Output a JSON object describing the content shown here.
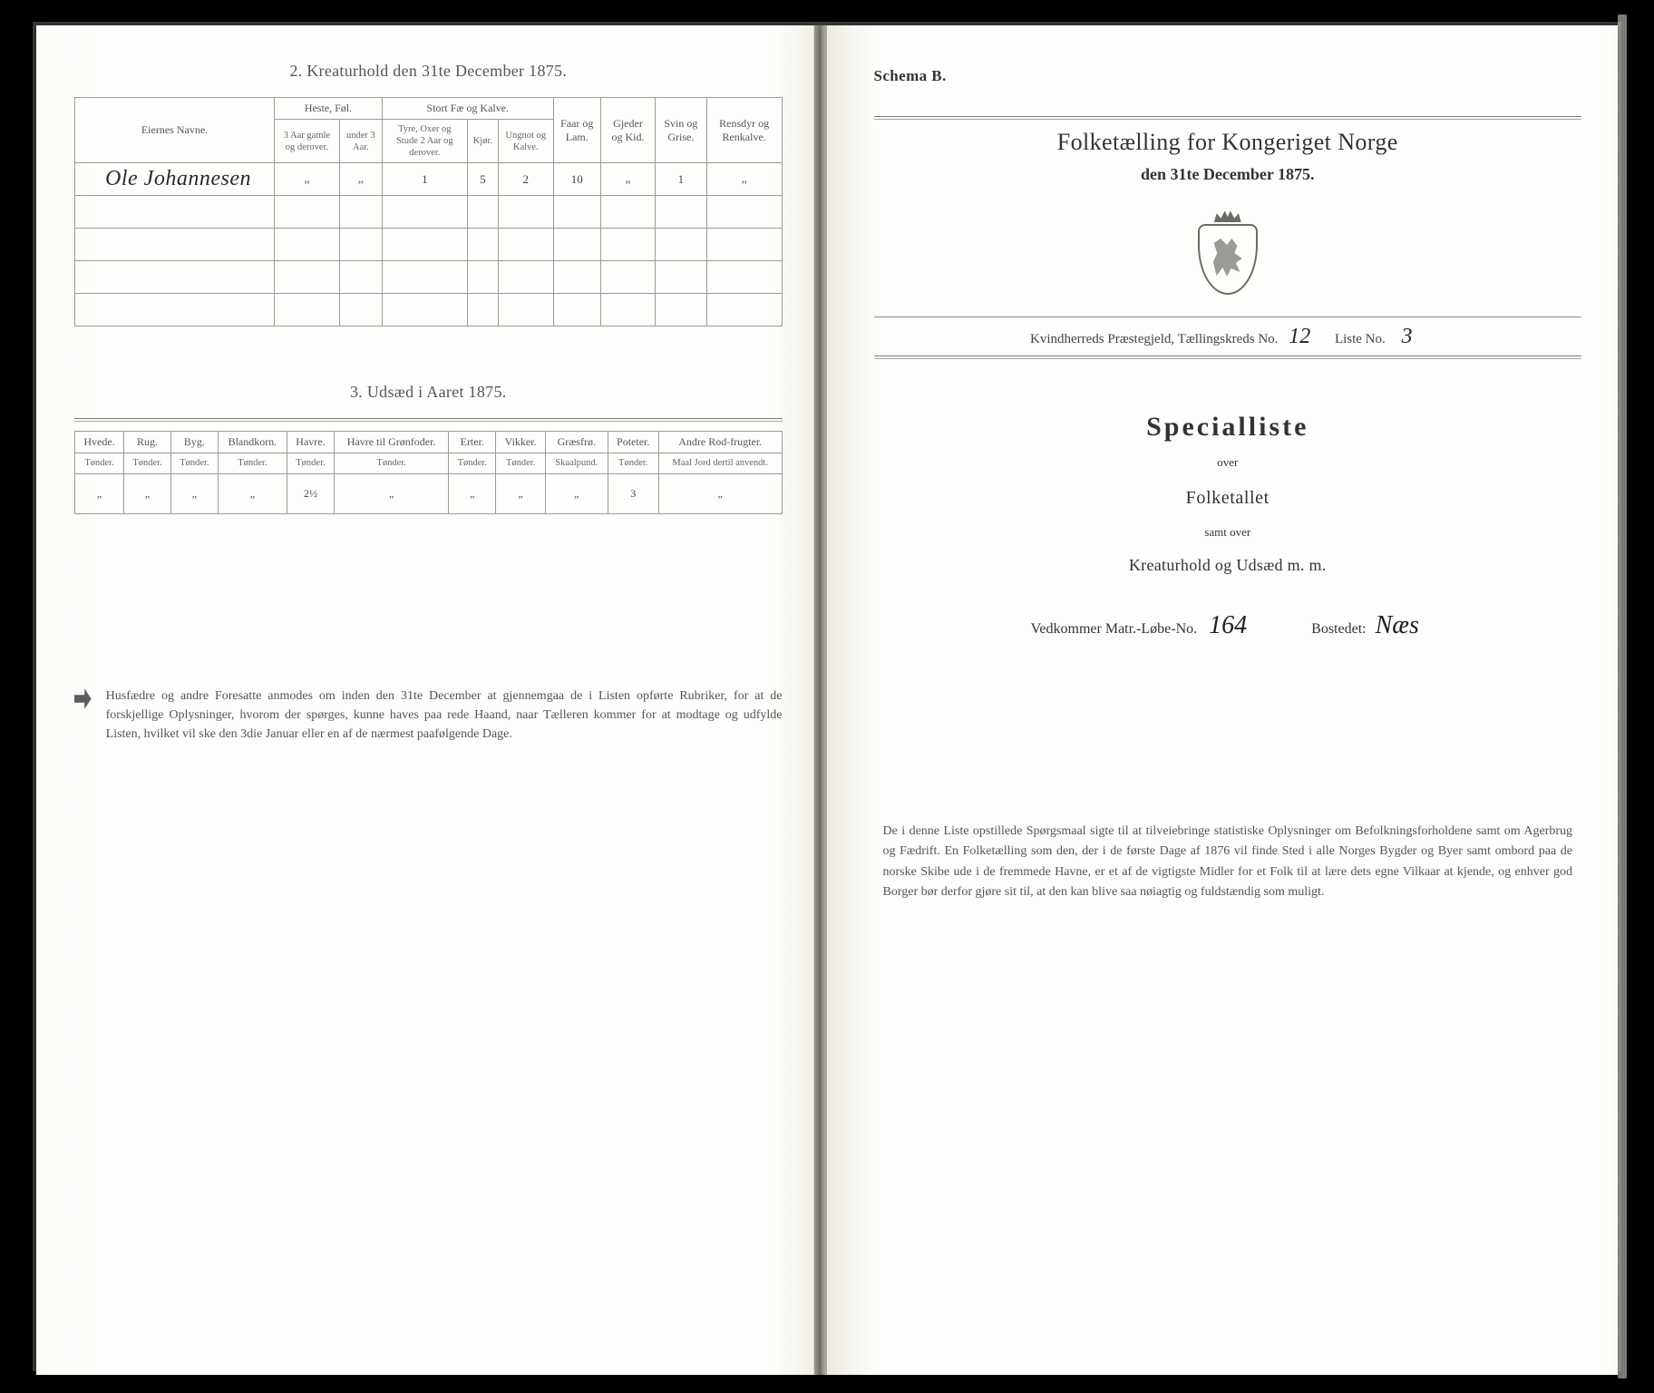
{
  "colors": {
    "page_bg": "#fdfdfb",
    "ink": "#333333",
    "rule": "#8c8c89",
    "border": "#9a9a96",
    "hand_ink": "#222222"
  },
  "left": {
    "section2_title": "2.  Kreaturhold den 31te December 1875.",
    "table1": {
      "owner_header": "Eiernes Navne.",
      "groups": {
        "heste": "Heste, Føl.",
        "stort": "Stort Fæ og Kalve."
      },
      "cols": {
        "h_old": "3 Aar gamle og derover.",
        "h_young": "under 3 Aar.",
        "oxe": "Tyre, Oxer og Stude 2 Aar og derover.",
        "kjor": "Kjør.",
        "ungnot": "Ungnot og Kalve.",
        "faar": "Faar og Lam.",
        "gjeder": "Gjeder og Kid.",
        "svin": "Svin og Grise.",
        "ren": "Rensdyr og Renkalve."
      },
      "row": {
        "owner": "Ole Johannesen",
        "h_old": "„",
        "h_young": "„",
        "oxe": "1",
        "kjor": "5",
        "ungnot": "2",
        "faar": "10",
        "gjeder": "„",
        "svin": "1",
        "ren": "„"
      }
    },
    "section3_title": "3.  Udsæd i Aaret 1875.",
    "table2": {
      "headers": {
        "hvede": "Hvede.",
        "rug": "Rug.",
        "byg": "Byg.",
        "bland": "Blandkorn.",
        "havre": "Havre.",
        "havre_gron": "Havre til Grønfoder.",
        "erter": "Erter.",
        "vikker": "Vikker.",
        "graafro": "Græsfrø.",
        "poteter": "Poteter.",
        "rod": "Andre Rod-frugter."
      },
      "sub": {
        "tonder": "Tønder.",
        "skaalpund": "Skaalpund.",
        "maal": "Maal Jord dertil anvendt."
      },
      "row": {
        "hvede": "„",
        "rug": "„",
        "byg": "„",
        "bland": "„",
        "havre": "2½",
        "havre_gron": "„",
        "erter": "„",
        "vikker": "„",
        "graafro": "„",
        "poteter": "3",
        "rod": "„"
      }
    },
    "note": "Husfædre og andre Foresatte anmodes om inden den 31te December at gjennemgaa de i Listen opførte Rubriker, for at de forskjellige Oplysninger, hvorom der spørges, kunne haves paa rede Haand, naar Tælleren kommer for at modtage og udfylde Listen, hvilket vil ske den 3die Januar eller en af de nærmest paafølgende Dage."
  },
  "right": {
    "schema": "Schema B.",
    "fk_title": "Folketælling for Kongeriget Norge",
    "fk_sub": "den 31te December 1875.",
    "kreds": {
      "prefix": "Kvindherreds Præstegjeld,  Tællingskreds No.",
      "kreds_no": "12",
      "liste_label": "Liste No.",
      "liste_no": "3"
    },
    "special": "Specialliste",
    "over": "over",
    "folketallet": "Folketallet",
    "samt_over": "samt over",
    "kreatur": "Kreaturhold og Udsæd m. m.",
    "matr": {
      "prefix": "Vedkommer Matr.-Løbe-No.",
      "matr_no": "164",
      "bostedet_label": "Bostedet:",
      "bostedet": "Næs"
    },
    "para": "De i denne Liste opstillede Spørgsmaal sigte til at tilveiebringe statistiske Oplysninger om Befolkningsforholdene samt om Agerbrug og Fædrift.  En Folketælling som den, der i de første Dage af 1876 vil finde Sted i alle Norges Bygder og Byer samt ombord paa de norske Skibe ude i de fremmede Havne, er et af de vigtigste Midler for et Folk til at lære dets egne Vilkaar at kjende, og enhver god Borger bør derfor gjøre sit til, at den kan blive saa nøiagtig og fuldstændig som muligt."
  }
}
